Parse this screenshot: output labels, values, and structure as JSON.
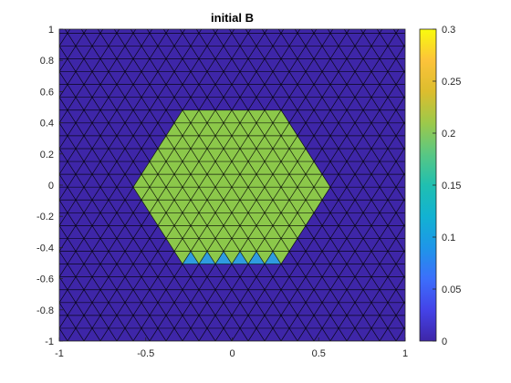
{
  "chart_data": {
    "type": "heatmap",
    "title": "initial B",
    "xlabel": "",
    "ylabel": "",
    "xlim": [
      -1,
      1
    ],
    "ylim": [
      -1,
      1
    ],
    "x_ticks": [
      "-1",
      "-0.5",
      "0",
      "0.5",
      "1"
    ],
    "y_ticks": [
      "1",
      "0.8",
      "0.6",
      "0.4",
      "0.2",
      "0",
      "-0.2",
      "-0.4",
      "-0.6",
      "-0.8",
      "-1"
    ],
    "colorbar": {
      "range": [
        0,
        0.3
      ],
      "ticks": [
        "0.3",
        "0.25",
        "0.2",
        "0.15",
        "0.1",
        "0.05",
        "0"
      ],
      "colormap": "parula"
    },
    "mesh": {
      "type": "triangular",
      "spacing": 0.095
    },
    "field": {
      "background_value": 0,
      "region": "hexagon",
      "region_center": [
        0,
        0
      ],
      "region_circumradius": 0.55,
      "region_value": 0.195
    },
    "colors": {
      "background": "#3e26a8",
      "inside": "#8cc84a",
      "mesh_line": "#000000"
    }
  }
}
